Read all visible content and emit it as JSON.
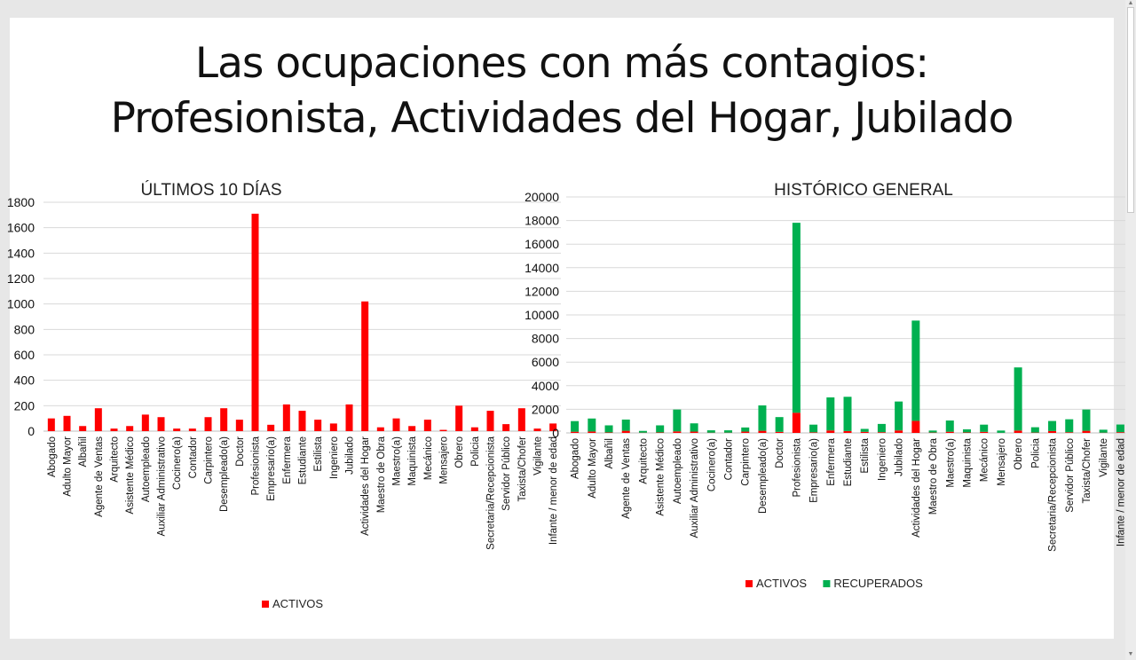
{
  "slide": {
    "title_line1": "Las ocupaciones con más contagios:",
    "title_line2": "Profesionista, Actividades del Hogar, Jubilado"
  },
  "colors": {
    "activos": "#ff0000",
    "recuperados": "#00b050",
    "gridline": "#d9d9d9",
    "axis": "#bfbfbf"
  },
  "icons": {
    "scroll_up": "triangle-up-icon",
    "scroll_down": "triangle-down-icon"
  },
  "chart_data": [
    {
      "type": "bar",
      "title": "ÚLTIMOS 10 DÍAS",
      "ylim": [
        0,
        1800
      ],
      "yticks": [
        0,
        200,
        400,
        600,
        800,
        1000,
        1200,
        1400,
        1600,
        1800
      ],
      "grid": true,
      "legend_position": "bottom",
      "categories": [
        "Abogado",
        "Adulto Mayor",
        "Albañil",
        "Agente de Ventas",
        "Arquitecto",
        "Asistente Médico",
        "Autoempleado",
        "Auxiliar Administrativo",
        "Cocinero(a)",
        "Contador",
        "Carpintero",
        "Desempleado(a)",
        "Doctor",
        "Profesionista",
        "Empresario(a)",
        "Enfermera",
        "Estudiante",
        "Estilista",
        "Ingeniero",
        "Jubilado",
        "Actividades del Hogar",
        "Maestro de Obra",
        "Maestro(a)",
        "Maquinista",
        "Mecánico",
        "Mensajero",
        "Obrero",
        "Policia",
        "Secretaria/Recepcionista",
        "Servidor Público",
        "Taxista/Chofer",
        "Vigilante",
        "Infante / menor de edad"
      ],
      "series": [
        {
          "name": "ACTIVOS",
          "values": [
            100,
            120,
            40,
            180,
            20,
            40,
            130,
            110,
            20,
            20,
            110,
            180,
            90,
            1710,
            50,
            210,
            160,
            90,
            60,
            210,
            1020,
            30,
            100,
            40,
            90,
            10,
            200,
            30,
            160,
            55,
            180,
            20,
            60
          ]
        }
      ]
    },
    {
      "type": "bar",
      "stacked": true,
      "title": "HISTÓRICO GENERAL",
      "ylim": [
        0,
        20000
      ],
      "yticks": [
        0,
        2000,
        4000,
        6000,
        8000,
        10000,
        12000,
        14000,
        16000,
        18000,
        20000
      ],
      "grid": true,
      "legend_position": "bottom",
      "categories": [
        "Abogado",
        "Adulto Mayor",
        "Albañil",
        "Agente de Ventas",
        "Arquitecto",
        "Asistente Médico",
        "Autoempleado",
        "Auxiliar Administrativo",
        "Cocinero(a)",
        "Contador",
        "Carpintero",
        "Desempleado(a)",
        "Doctor",
        "Profesionista",
        "Empresario(a)",
        "Enfermera",
        "Estudiante",
        "Estilista",
        "Ingeniero",
        "Jubilado",
        "Actividades del Hogar",
        "Maestro de Obra",
        "Maestro(a)",
        "Maquinista",
        "Mecánico",
        "Mensajero",
        "Obrero",
        "Policia",
        "Secretaria/Recepcionista",
        "Servidor Público",
        "Taxista/Chofer",
        "Vigilante",
        "Infante / menor de edad"
      ],
      "series": [
        {
          "name": "ACTIVOS",
          "values": [
            100,
            120,
            40,
            180,
            20,
            40,
            130,
            110,
            20,
            20,
            110,
            180,
            90,
            1710,
            50,
            210,
            160,
            90,
            60,
            210,
            1020,
            30,
            100,
            40,
            90,
            10,
            200,
            30,
            160,
            55,
            180,
            20,
            60
          ]
        },
        {
          "name": "RECUPERADOS",
          "values": [
            900,
            1100,
            600,
            950,
            150,
            600,
            1850,
            700,
            200,
            200,
            350,
            2150,
            1250,
            16100,
            650,
            2800,
            2900,
            250,
            700,
            2450,
            8500,
            170,
            950,
            260,
            610,
            190,
            5350,
            450,
            850,
            1100,
            1800,
            250,
            650
          ]
        }
      ]
    }
  ]
}
